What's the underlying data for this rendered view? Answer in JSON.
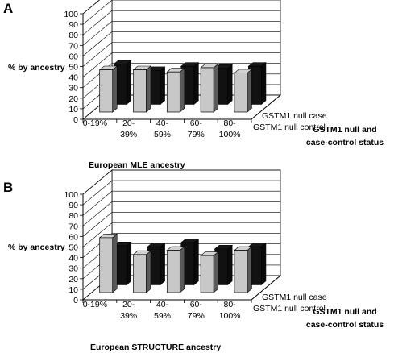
{
  "chart_data": [
    {
      "panel": "A",
      "type": "bar",
      "categories": [
        "0-19%",
        "20-39%",
        "40-59%",
        "60-79%",
        "80-100%"
      ],
      "category_lines": [
        [
          "0-19%"
        ],
        [
          "20-",
          "39%"
        ],
        [
          "40-",
          "59%"
        ],
        [
          "60-",
          "79%"
        ],
        [
          "80-",
          "100%"
        ]
      ],
      "series": [
        {
          "name": "GSTM1 null case",
          "values": [
            40,
            40,
            38,
            42,
            37
          ],
          "color": "#c8c8c8"
        },
        {
          "name": "GSTM1 null control",
          "values": [
            38,
            32,
            36,
            34,
            36
          ],
          "color": "#111111"
        }
      ],
      "ylabel": "% by ancestry",
      "xlabel": "European MLE ancestry",
      "zlabel_lines": [
        "GSTM1 null and",
        "case-control status"
      ],
      "yticks": [
        0,
        10,
        20,
        30,
        40,
        50,
        60,
        70,
        80,
        90,
        100
      ],
      "ylim": [
        0,
        100
      ]
    },
    {
      "panel": "B",
      "type": "bar",
      "categories": [
        "0-19%",
        "20-39%",
        "40-59%",
        "60-79%",
        "80-100%"
      ],
      "category_lines": [
        [
          "0-19%"
        ],
        [
          "20-",
          "39%"
        ],
        [
          "40-",
          "59%"
        ],
        [
          "60-",
          "79%"
        ],
        [
          "80-",
          "100%"
        ]
      ],
      "series": [
        {
          "name": "GSTM1 null case",
          "values": [
            52,
            36,
            40,
            35,
            40
          ],
          "color": "#c8c8c8"
        },
        {
          "name": "GSTM1 null control",
          "values": [
            37,
            36,
            40,
            34,
            36
          ],
          "color": "#111111"
        }
      ],
      "ylabel": "% by ancestry",
      "xlabel": "European STRUCTURE ancestry",
      "zlabel_lines": [
        "GSTM1 null and",
        "case-control status"
      ],
      "yticks": [
        0,
        10,
        20,
        30,
        40,
        50,
        60,
        70,
        80,
        90,
        100
      ],
      "ylim": [
        0,
        100
      ]
    }
  ]
}
